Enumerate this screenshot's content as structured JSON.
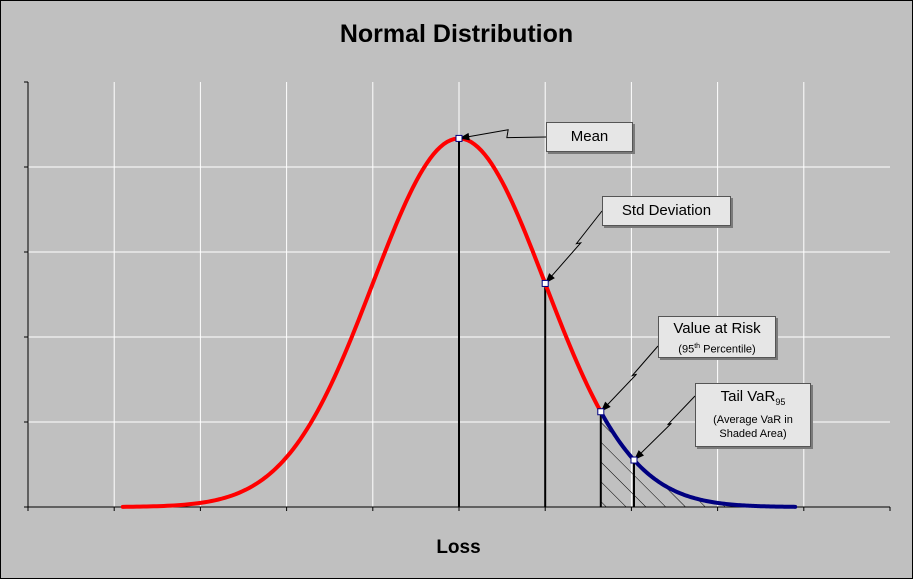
{
  "chart_data": {
    "type": "line",
    "title": "Normal Distribution",
    "xlabel": "Loss",
    "ylabel": "",
    "mean": 0,
    "std": 1,
    "xlim": [
      -5,
      5
    ],
    "series": [
      {
        "name": "",
        "color": "#ff0000",
        "x_range": [
          -3.9,
          1.645
        ]
      },
      {
        "name": "",
        "color": "#000080",
        "x_range": [
          1.645,
          3.9
        ]
      }
    ],
    "shaded_tail": {
      "from": 1.645,
      "to": 3.9,
      "pattern": "hatch"
    },
    "markers": [
      {
        "x": 0,
        "label": "Mean"
      },
      {
        "x": 1,
        "label": "Std Deviation"
      },
      {
        "x": 1.645,
        "label": "Value at Risk",
        "sublabel_pre": "(95",
        "sublabel_sup": "th",
        "sublabel_post": " Percentile)"
      },
      {
        "x": 2.03,
        "label": "Tail VaR",
        "label_sub": "95",
        "sublabel_line1": "(Average VaR in",
        "sublabel_line2": "Shaded Area)"
      }
    ],
    "grid": true,
    "legend": "none"
  }
}
